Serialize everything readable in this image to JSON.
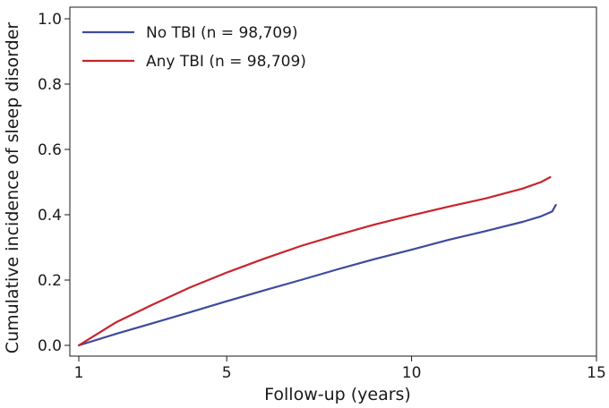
{
  "chart_data": {
    "type": "line",
    "title": "",
    "xlabel": "Follow-up (years)",
    "ylabel": "Cumulative incidence of sleep disorder",
    "xlim": [
      1,
      15
    ],
    "ylim": [
      0,
      1
    ],
    "x_ticks": [
      1,
      5,
      10,
      15
    ],
    "y_ticks": [
      "0.0",
      "0.2",
      "0.4",
      "0.6",
      "0.8",
      "1.0"
    ],
    "grid": false,
    "legend_position": "top-left",
    "series": [
      {
        "name": "No TBI (n = 98,709)",
        "color": "#3f4a9c",
        "x": [
          1,
          2,
          3,
          4,
          5,
          6,
          7,
          8,
          9,
          10,
          11,
          12,
          13,
          13.5,
          13.8,
          13.9
        ],
        "y": [
          0.0,
          0.035,
          0.068,
          0.101,
          0.135,
          0.168,
          0.2,
          0.233,
          0.264,
          0.293,
          0.323,
          0.35,
          0.378,
          0.395,
          0.41,
          0.43
        ]
      },
      {
        "name": "Any TBI (n = 98,709)",
        "color": "#c8242b",
        "x": [
          1,
          2,
          3,
          4,
          5,
          6,
          7,
          8,
          9,
          10,
          11,
          12,
          13,
          13.5,
          13.75
        ],
        "y": [
          0.0,
          0.07,
          0.125,
          0.177,
          0.223,
          0.265,
          0.304,
          0.338,
          0.37,
          0.398,
          0.425,
          0.45,
          0.48,
          0.5,
          0.515
        ]
      }
    ]
  }
}
